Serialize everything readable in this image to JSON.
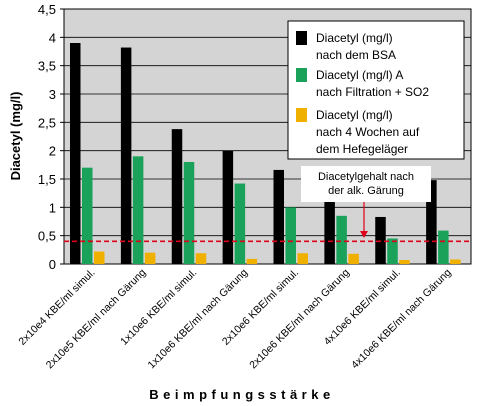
{
  "chart_data": {
    "type": "bar",
    "title": "",
    "ylabel": "Diacetyl (mg/l)",
    "xlabel": "Beimpfungsstärke",
    "ylim": [
      0,
      4.5
    ],
    "ytick_step": 0.5,
    "yticks": [
      "0",
      "0,5",
      "1",
      "1,5",
      "2",
      "2,5",
      "3",
      "3,5",
      "4",
      "4,5"
    ],
    "grid": true,
    "legend_position": "top-right",
    "categories": [
      "2x10e4 KBE/ml simul.",
      "2x10e5 KBE/ml nach Gärung",
      "1x10e6 KBE/ml simul.",
      "1x10e6 KBE/ml nach Gärung",
      "2x10e6 KBE/ml simul.",
      "2x10e6 KBE/ml nach Gärung",
      "4x10e6 KBE/ml simul.",
      "4x10e6 KBE/ml nach Gärung"
    ],
    "series": [
      {
        "name": "Diacetyl (mg/l) nach dem BSA",
        "legend_lines": [
          "Diacetyl (mg/l)",
          "nach dem BSA"
        ],
        "color": "#000000",
        "values": [
          3.9,
          3.82,
          2.38,
          2.0,
          1.66,
          1.1,
          0.83,
          1.48
        ]
      },
      {
        "name": "Diacetyl (mg/l) A nach Filtration + SO2",
        "legend_lines": [
          "Diacetyl (mg/l) A",
          "nach Filtration + SO2"
        ],
        "color": "#1aa15a",
        "values": [
          1.7,
          1.9,
          1.8,
          1.42,
          1.0,
          0.85,
          0.45,
          0.59
        ]
      },
      {
        "name": "Diacetyl (mg/l) nach 4 Wochen auf dem Hefegeläger",
        "legend_lines": [
          "Diacetyl (mg/l)",
          "nach 4 Wochen auf",
          "dem Hefegeläger"
        ],
        "color": "#f0b000",
        "values": [
          0.22,
          0.2,
          0.19,
          0.09,
          0.19,
          0.18,
          0.07,
          0.08
        ]
      }
    ],
    "reference_line": {
      "value": 0.4,
      "color": "#e0001a",
      "label_lines": [
        "Diacetylgehalt nach",
        "der alk. Gärung"
      ]
    }
  }
}
